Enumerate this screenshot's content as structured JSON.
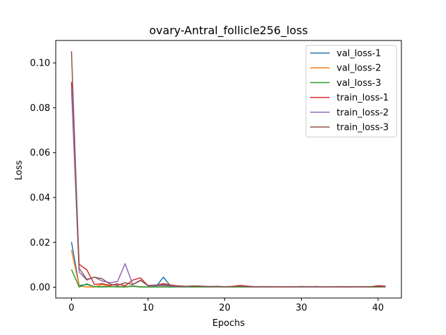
{
  "chart_data": {
    "type": "line",
    "title": "ovary-Antral_follicle256_loss",
    "xlabel": "Epochs",
    "ylabel": "Loss",
    "xlim": [
      -2.05,
      43.05
    ],
    "ylim": [
      -0.0048,
      0.11
    ],
    "xticks": [
      0,
      10,
      20,
      30,
      40
    ],
    "yticks": [
      0.0,
      0.02,
      0.04,
      0.06,
      0.08,
      0.1
    ],
    "xtick_labels": [
      "0",
      "10",
      "20",
      "30",
      "40"
    ],
    "ytick_labels": [
      "0.00",
      "0.02",
      "0.04",
      "0.06",
      "0.08",
      "0.10"
    ],
    "grid": false,
    "legend_position": "top-right",
    "x": [
      0,
      1,
      2,
      3,
      4,
      5,
      6,
      7,
      8,
      9,
      10,
      11,
      12,
      13,
      14,
      15,
      16,
      17,
      18,
      19,
      20,
      21,
      22,
      23,
      24,
      25,
      26,
      27,
      28,
      29,
      30,
      31,
      32,
      33,
      34,
      35,
      36,
      37,
      38,
      39,
      40,
      41
    ],
    "series": [
      {
        "name": "val_loss-1",
        "color": "#1f77b4",
        "values": [
          0.0202,
          0.0008,
          0.0012,
          0.0003,
          0.0002,
          0.0003,
          0.0003,
          0.0002,
          0.0006,
          0.0002,
          0.0001,
          0.0001,
          0.0045,
          0.0002,
          0.0001,
          0.0001,
          0.0001,
          0.0001,
          0.0001,
          0.0001,
          0.0001,
          0.0001,
          0.0001,
          0.0001,
          0.0001,
          0.0001,
          0.0001,
          0.0001,
          0.0001,
          0.0001,
          0.0001,
          0.0001,
          0.0001,
          0.0001,
          0.0001,
          0.0001,
          0.0001,
          0.0001,
          0.0001,
          0.0001,
          0.0001,
          0.0001
        ]
      },
      {
        "name": "val_loss-2",
        "color": "#ff7f0e",
        "values": [
          0.0166,
          0.0006,
          0.0001,
          0.0001,
          0.0012,
          0.0004,
          0.0001,
          0.0002,
          0.0005,
          0.0002,
          0.0001,
          0.0001,
          0.0002,
          0.0001,
          0.0001,
          0.0001,
          0.0001,
          0.0001,
          0.0001,
          0.0001,
          0.0001,
          0.0001,
          0.0001,
          0.0001,
          0.0001,
          0.0001,
          0.0001,
          0.0001,
          0.0001,
          0.0001,
          0.0001,
          0.0001,
          0.0001,
          0.0001,
          0.0001,
          0.0001,
          0.0001,
          0.0001,
          0.0001,
          0.0001,
          0.0001,
          0.0001
        ]
      },
      {
        "name": "val_loss-3",
        "color": "#2ca02c",
        "values": [
          0.0079,
          0.0001,
          0.0015,
          0.0002,
          0.0001,
          0.0002,
          0.0002,
          0.0001,
          0.0004,
          0.0001,
          0.0001,
          0.0001,
          0.0001,
          0.0001,
          0.0001,
          0.0001,
          0.0001,
          0.0001,
          0.0001,
          0.0001,
          0.0001,
          0.0001,
          0.0001,
          0.0001,
          0.0001,
          0.0001,
          0.0001,
          0.0001,
          0.0001,
          0.0001,
          0.0001,
          0.0001,
          0.0001,
          0.0001,
          0.0001,
          0.0001,
          0.0001,
          0.0001,
          0.0001,
          0.0001,
          0.0001,
          0.0001
        ]
      },
      {
        "name": "train_loss-1",
        "color": "#d62728",
        "values": [
          0.0915,
          0.0102,
          0.0078,
          0.0012,
          0.0016,
          0.0008,
          0.0015,
          0.0006,
          0.0032,
          0.0042,
          0.0006,
          0.0009,
          0.0016,
          0.001,
          0.0006,
          0.0004,
          0.0005,
          0.0004,
          0.0003,
          0.0003,
          0.0002,
          0.0004,
          0.0008,
          0.0005,
          0.0002,
          0.0003,
          0.0002,
          0.0002,
          0.0002,
          0.0002,
          0.0003,
          0.0002,
          0.0003,
          0.0001,
          0.0002,
          0.0003,
          0.0002,
          0.0002,
          0.0003,
          0.0002,
          0.0007,
          0.0005
        ]
      },
      {
        "name": "train_loss-2",
        "color": "#9467bd",
        "values": [
          0.0885,
          0.0068,
          0.0032,
          0.0045,
          0.0028,
          0.002,
          0.0025,
          0.0105,
          0.0012,
          0.0032,
          0.0005,
          0.0006,
          0.0008,
          0.0005,
          0.0003,
          0.0002,
          0.0006,
          0.0004,
          0.0003,
          0.0002,
          0.0002,
          0.0003,
          0.0004,
          0.0002,
          0.0002,
          0.0001,
          0.0002,
          0.0001,
          0.0001,
          0.0001,
          0.0002,
          0.0001,
          0.0001,
          0.0002,
          0.0001,
          0.0001,
          0.0002,
          0.0001,
          0.0001,
          0.0002,
          0.0003,
          0.0001
        ]
      },
      {
        "name": "train_loss-3",
        "color": "#8c564b",
        "values": [
          0.1052,
          0.0085,
          0.0035,
          0.0045,
          0.0038,
          0.0014,
          0.0008,
          0.002,
          0.0012,
          0.003,
          0.0008,
          0.001,
          0.0012,
          0.0008,
          0.0005,
          0.0004,
          0.0006,
          0.0005,
          0.0003,
          0.0004,
          0.0002,
          0.0003,
          0.0005,
          0.0003,
          0.0001,
          0.0002,
          0.0002,
          0.0002,
          0.0001,
          0.0002,
          0.0003,
          0.0002,
          0.0003,
          0.0001,
          0.0002,
          0.0002,
          0.0001,
          0.0002,
          0.0002,
          0.0003,
          0.0002,
          0.0004
        ]
      }
    ]
  }
}
